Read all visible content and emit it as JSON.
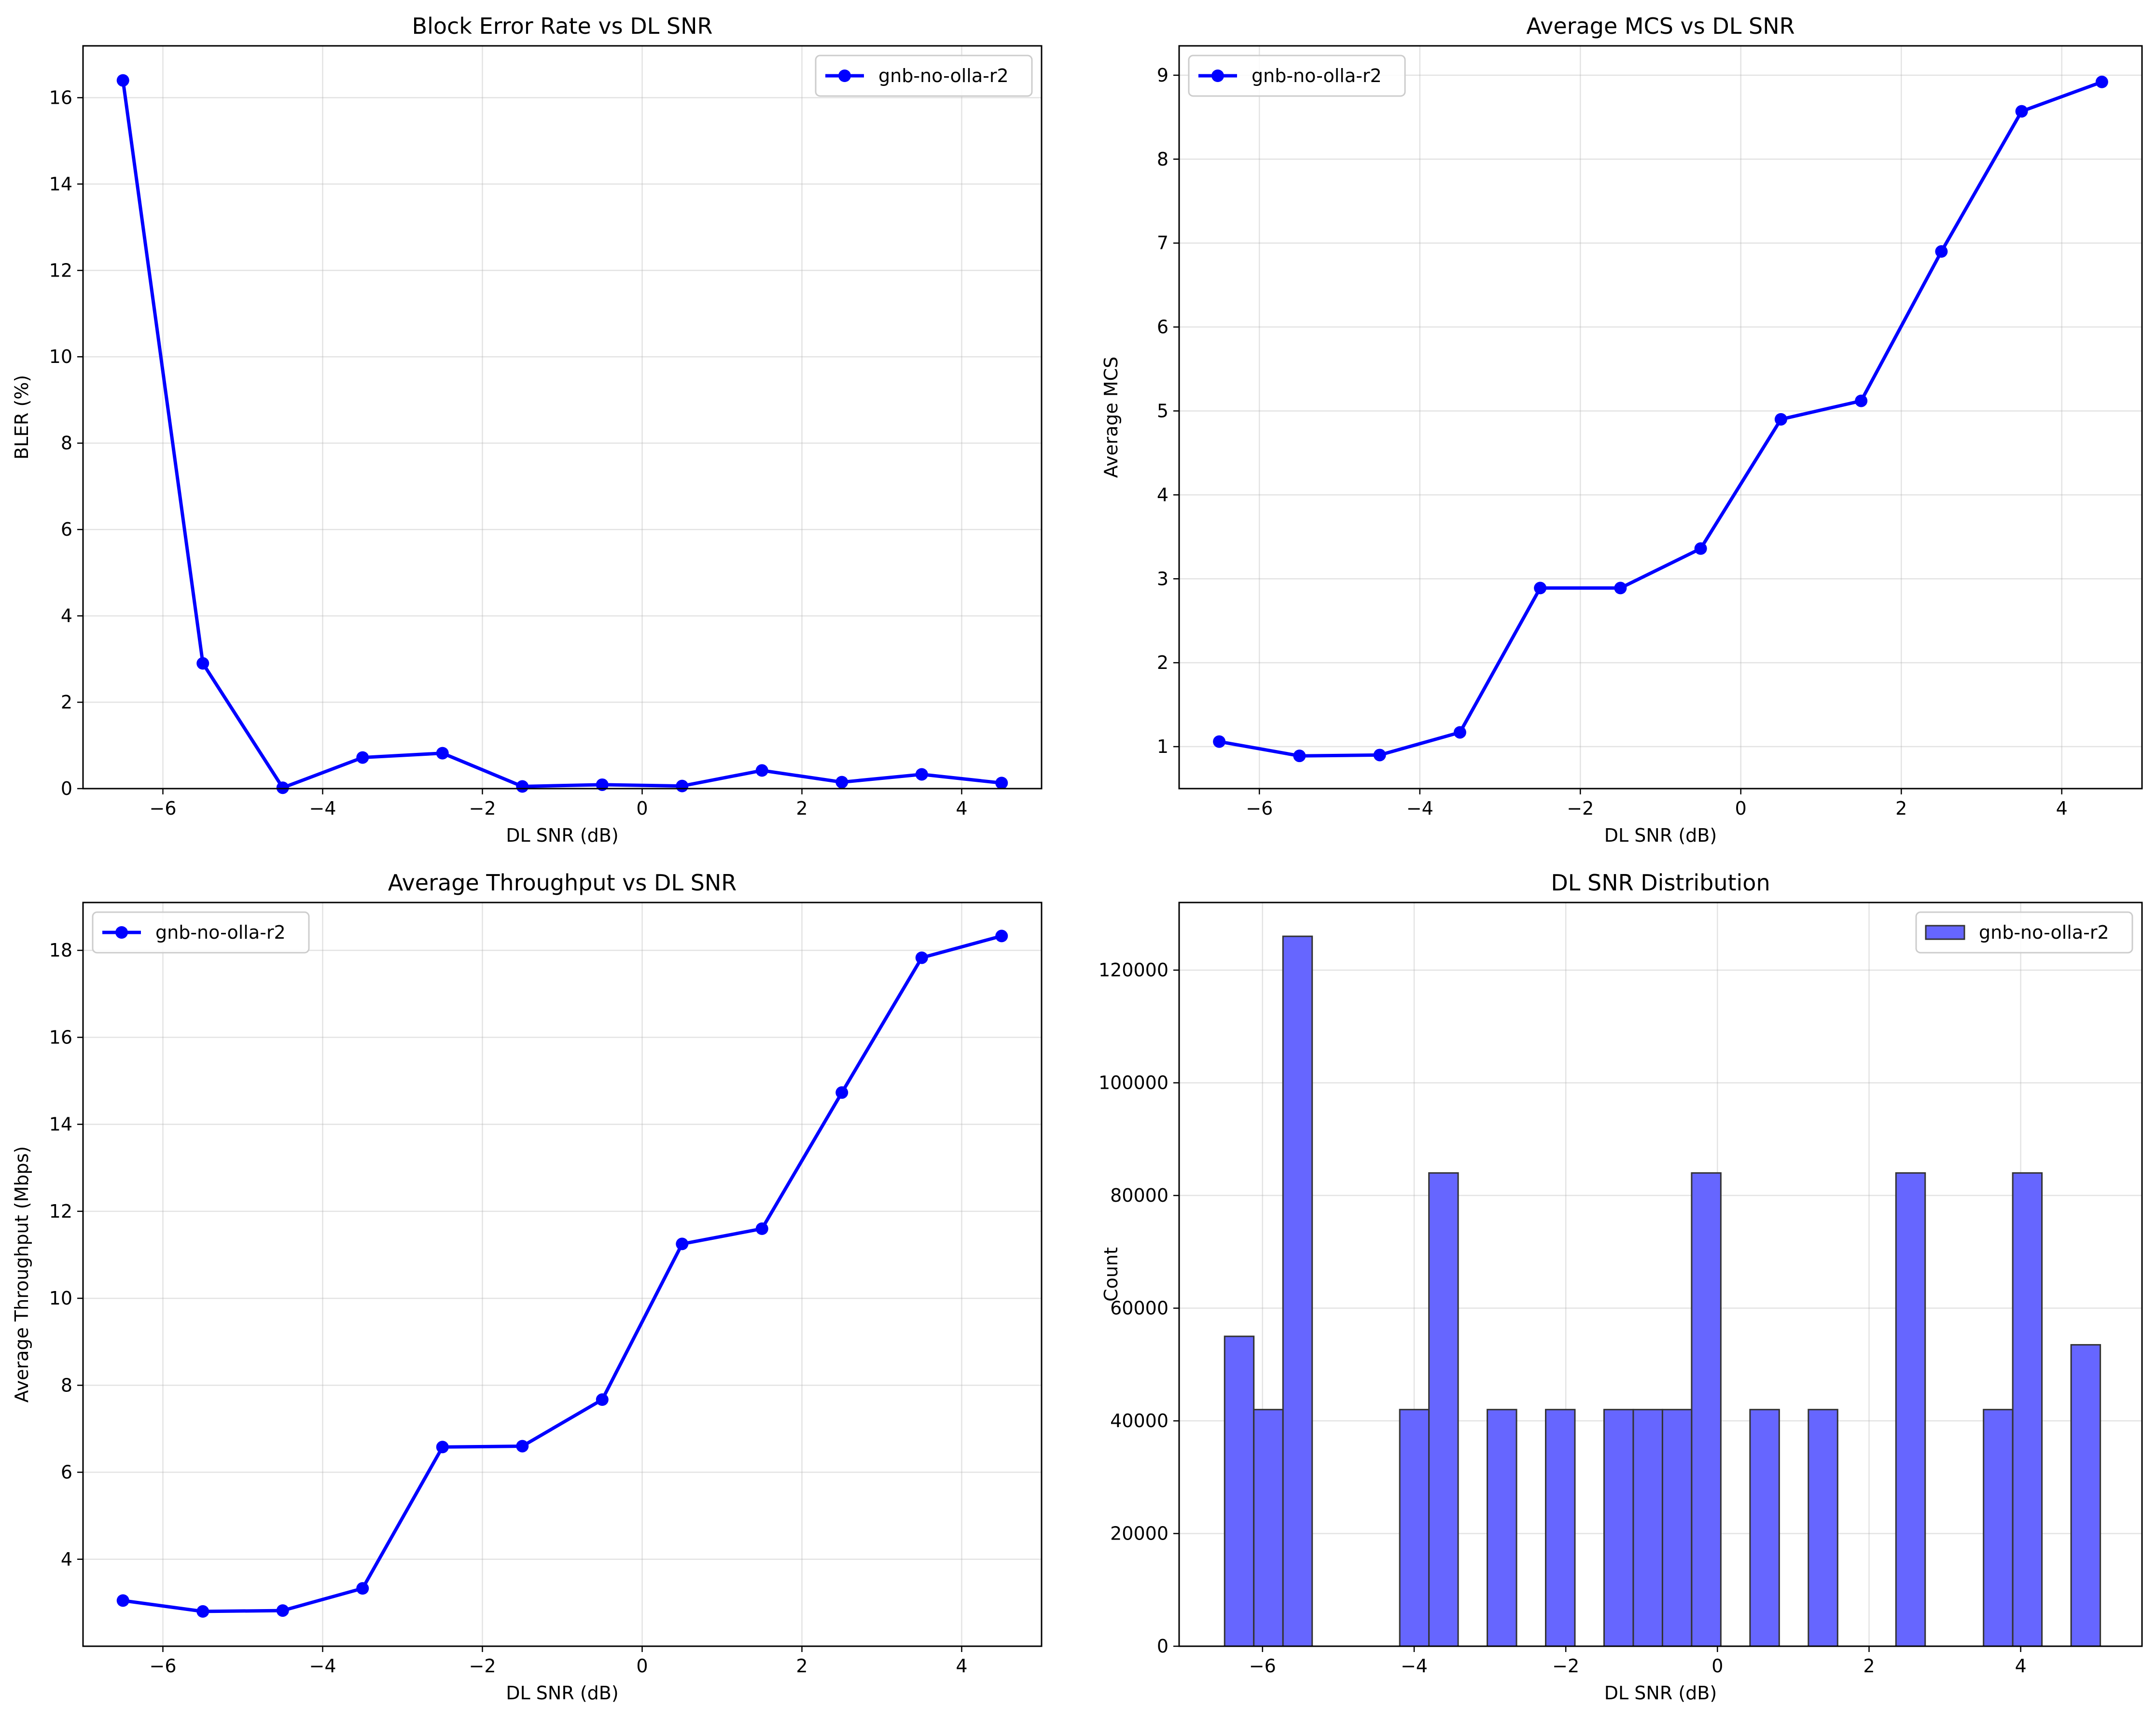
{
  "chart_data": [
    {
      "type": "line",
      "title": "Block Error Rate vs DL SNR",
      "xlabel": "DL SNR (dB)",
      "ylabel": "BLER (%)",
      "xlim": [
        -7,
        5
      ],
      "ylim": [
        0,
        17.2
      ],
      "xticks": [
        -6,
        -4,
        -2,
        0,
        2,
        4
      ],
      "xtick_labels": [
        "−6",
        "−4",
        "−2",
        "0",
        "2",
        "4"
      ],
      "yticks": [
        0,
        2,
        4,
        6,
        8,
        10,
        12,
        14,
        16
      ],
      "ytick_labels": [
        "0",
        "2",
        "4",
        "6",
        "8",
        "10",
        "12",
        "14",
        "16"
      ],
      "grid": true,
      "legend_position": "upper right",
      "color": "#0000ff",
      "x": [
        -6.5,
        -5.5,
        -4.5,
        -3.5,
        -2.5,
        -1.5,
        -0.5,
        0.5,
        1.5,
        2.5,
        3.5,
        4.5
      ],
      "series": [
        {
          "name": "gnb-no-olla-r2",
          "values": [
            16.4,
            2.9,
            0.02,
            0.72,
            0.82,
            0.05,
            0.09,
            0.06,
            0.42,
            0.15,
            0.33,
            0.13
          ]
        }
      ]
    },
    {
      "type": "line",
      "title": "Average MCS vs DL SNR",
      "xlabel": "DL SNR (dB)",
      "ylabel": "Average MCS",
      "xlim": [
        -7,
        5
      ],
      "ylim": [
        0.5,
        9.35
      ],
      "xticks": [
        -6,
        -4,
        -2,
        0,
        2,
        4
      ],
      "xtick_labels": [
        "−6",
        "−4",
        "−2",
        "0",
        "2",
        "4"
      ],
      "yticks": [
        1,
        2,
        3,
        4,
        5,
        6,
        7,
        8,
        9
      ],
      "ytick_labels": [
        "1",
        "2",
        "3",
        "4",
        "5",
        "6",
        "7",
        "8",
        "9"
      ],
      "grid": true,
      "legend_position": "upper left",
      "color": "#0000ff",
      "x": [
        -6.5,
        -5.5,
        -4.5,
        -3.5,
        -2.5,
        -1.5,
        -0.5,
        0.5,
        1.5,
        2.5,
        3.5,
        4.5
      ],
      "series": [
        {
          "name": "gnb-no-olla-r2",
          "values": [
            1.06,
            0.89,
            0.9,
            1.17,
            2.89,
            2.89,
            3.36,
            4.9,
            5.12,
            6.9,
            8.57,
            8.92
          ]
        }
      ]
    },
    {
      "type": "line",
      "title": "Average Throughput vs DL SNR",
      "xlabel": "DL SNR (dB)",
      "ylabel": "Average Throughput (Mbps)",
      "xlim": [
        -7,
        5
      ],
      "ylim": [
        2.0,
        19.1
      ],
      "xticks": [
        -6,
        -4,
        -2,
        0,
        2,
        4
      ],
      "xtick_labels": [
        "−6",
        "−4",
        "−2",
        "0",
        "2",
        "4"
      ],
      "yticks": [
        4,
        6,
        8,
        10,
        12,
        14,
        16,
        18
      ],
      "ytick_labels": [
        "4",
        "6",
        "8",
        "10",
        "12",
        "14",
        "16",
        "18"
      ],
      "grid": true,
      "legend_position": "upper left",
      "color": "#0000ff",
      "x": [
        -6.5,
        -5.5,
        -4.5,
        -3.5,
        -2.5,
        -1.5,
        -0.5,
        0.5,
        1.5,
        2.5,
        3.5,
        4.5
      ],
      "series": [
        {
          "name": "gnb-no-olla-r2",
          "values": [
            3.05,
            2.8,
            2.82,
            3.33,
            6.58,
            6.6,
            7.67,
            11.25,
            11.6,
            14.73,
            17.83,
            18.33
          ]
        }
      ]
    },
    {
      "type": "bar",
      "title": "DL SNR Distribution",
      "xlabel": "DL SNR (dB)",
      "ylabel": "Count",
      "xlim": [
        -7.1,
        5.6
      ],
      "ylim": [
        0,
        132000
      ],
      "xticks": [
        -6,
        -4,
        -2,
        0,
        2,
        4
      ],
      "xtick_labels": [
        "−6",
        "−4",
        "−2",
        "0",
        "2",
        "4"
      ],
      "yticks": [
        0,
        20000,
        40000,
        60000,
        80000,
        100000,
        120000
      ],
      "ytick_labels": [
        "0",
        "20000",
        "40000",
        "60000",
        "80000",
        "100000",
        "120000"
      ],
      "grid": true,
      "legend_position": "upper right",
      "color": "#6666ff",
      "edge_color": "#333333",
      "bin_start": -6.5,
      "bin_width": 0.385,
      "series": [
        {
          "name": "gnb-no-olla-r2",
          "values": [
            55000,
            42000,
            126000,
            0,
            0,
            0,
            42000,
            84000,
            0,
            42000,
            0,
            42000,
            0,
            42000,
            42000,
            42000,
            84000,
            0,
            42000,
            0,
            42000,
            0,
            0,
            84000,
            0,
            0,
            42000,
            84000,
            0,
            53500
          ]
        }
      ]
    }
  ]
}
